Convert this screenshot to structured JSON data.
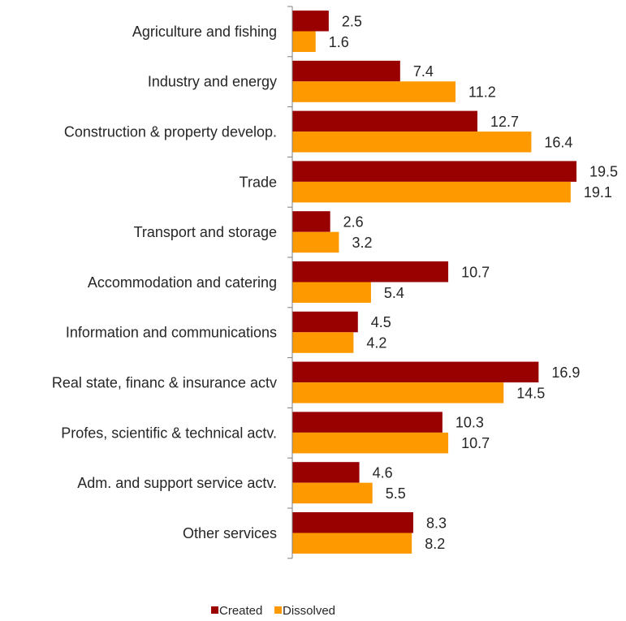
{
  "chart_data": {
    "type": "bar",
    "orientation": "horizontal",
    "categories": [
      "Agriculture and fishing",
      "Industry and energy",
      "Construction & property develop.",
      "Trade",
      "Transport and storage",
      "Accommodation and catering",
      "Information and communications",
      "Real state, financ & insurance actv",
      "Profes, scientific & technical actv.",
      "Adm. and support service actv.",
      "Other services"
    ],
    "series": [
      {
        "name": "Created",
        "color": "#990000",
        "values": [
          2.5,
          7.4,
          12.7,
          19.5,
          2.6,
          10.7,
          4.5,
          16.9,
          10.3,
          4.6,
          8.3
        ]
      },
      {
        "name": "Dissolved",
        "color": "#FF9900",
        "values": [
          1.6,
          11.2,
          16.4,
          19.1,
          3.2,
          5.4,
          4.2,
          14.5,
          10.7,
          5.5,
          8.2
        ]
      }
    ],
    "xlim": [
      0,
      20
    ],
    "legend_position": "bottom",
    "grid": false
  }
}
